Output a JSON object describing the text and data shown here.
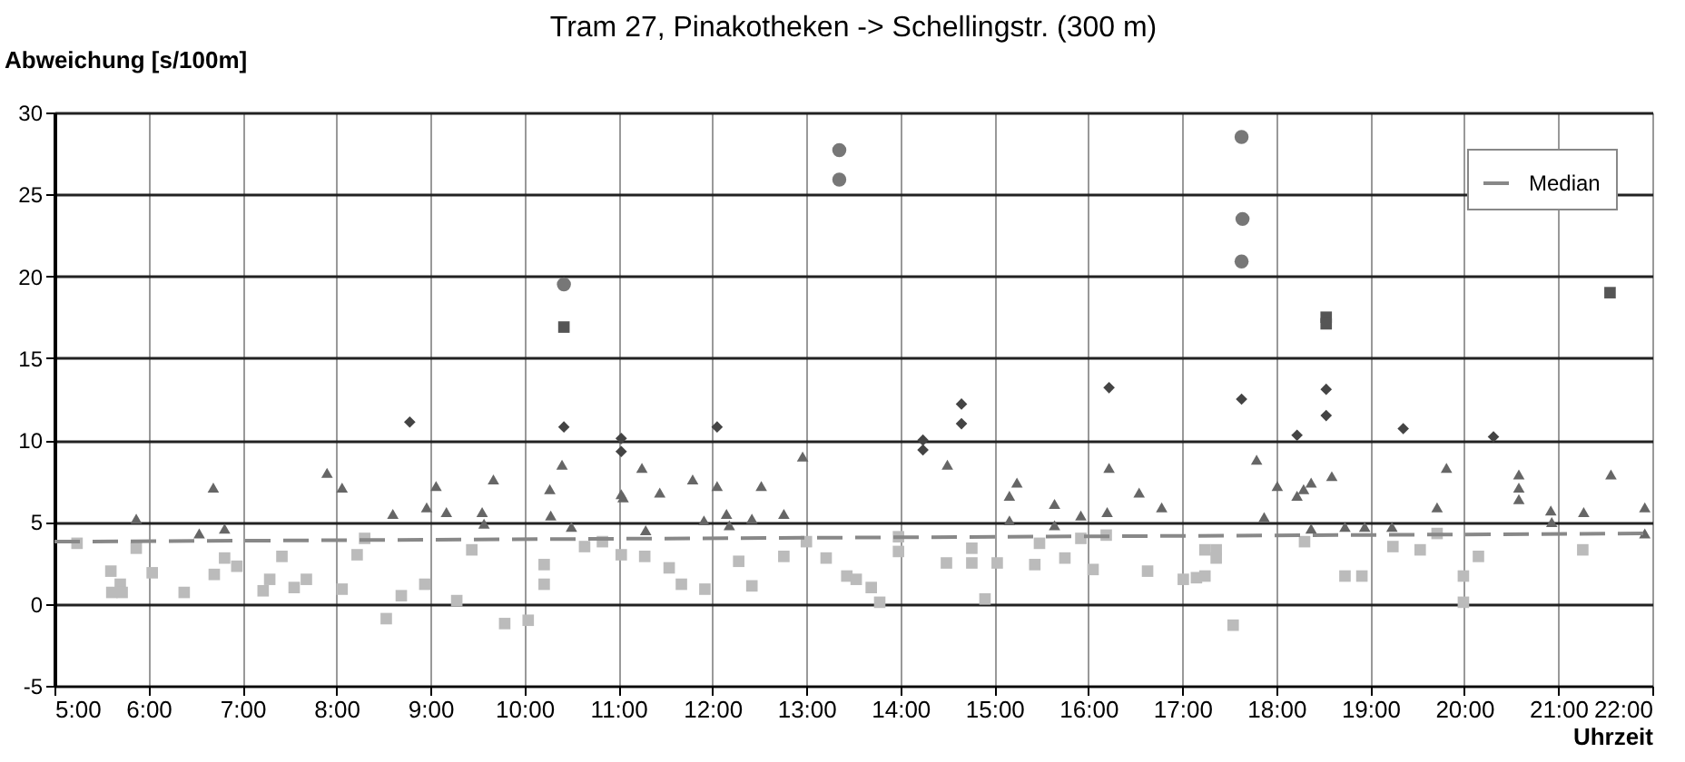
{
  "chart_data": {
    "type": "scatter",
    "title": "Tram 27, Pinakotheken -> Schellingstr. (300 m)",
    "xlabel": "Uhrzeit",
    "ylabel": "Abweichung [s/100m]",
    "xlim": [
      5,
      22
    ],
    "xticks": [
      {
        "value": 5,
        "label": "5:00"
      },
      {
        "value": 6,
        "label": "6:00"
      },
      {
        "value": 7,
        "label": "7:00"
      },
      {
        "value": 8,
        "label": "8:00"
      },
      {
        "value": 9,
        "label": "9:00"
      },
      {
        "value": 10,
        "label": "10:00"
      },
      {
        "value": 11,
        "label": "11:00"
      },
      {
        "value": 12,
        "label": "12:00"
      },
      {
        "value": 13,
        "label": "13:00"
      },
      {
        "value": 14,
        "label": "14:00"
      },
      {
        "value": 15,
        "label": "15:00"
      },
      {
        "value": 16,
        "label": "16:00"
      },
      {
        "value": 17,
        "label": "17:00"
      },
      {
        "value": 18,
        "label": "18:00"
      },
      {
        "value": 19,
        "label": "19:00"
      },
      {
        "value": 20,
        "label": "20:00"
      },
      {
        "value": 21,
        "label": "21:00"
      },
      {
        "value": 22,
        "label": "22:00"
      }
    ],
    "ylim": [
      -5,
      30
    ],
    "yticks": [
      -5,
      0,
      5,
      10,
      15,
      20,
      25,
      30
    ],
    "grid": true,
    "legend": "top right",
    "series": [
      {
        "marker": "square",
        "color": "#bbbbbb",
        "x": [
          5.24,
          5.6,
          5.61,
          5.7,
          5.72,
          5.87,
          6.04,
          6.38,
          6.7,
          6.81,
          6.94,
          7.22,
          7.29,
          7.42,
          7.55,
          7.68,
          8.06,
          8.22,
          8.3,
          8.53,
          8.69,
          8.94,
          9.28,
          9.44,
          9.79,
          10.04,
          10.21,
          10.21,
          10.64,
          10.83,
          11.03,
          11.28,
          11.54,
          11.67,
          11.92,
          12.28,
          12.42,
          12.76,
          13.0,
          13.21,
          13.43,
          13.53,
          13.69,
          13.78,
          13.98,
          13.98,
          14.49,
          14.76,
          14.76,
          14.9,
          15.03,
          15.43,
          15.48,
          15.75,
          15.92,
          16.05,
          16.19,
          16.63,
          17.01,
          17.15,
          17.24,
          17.24,
          17.36,
          17.36,
          17.54,
          18.3,
          18.73,
          18.91,
          19.24,
          19.53,
          19.71,
          19.99,
          19.99,
          20.15,
          21.26
        ],
        "values": [
          3.7,
          2.0,
          0.7,
          1.2,
          0.7,
          3.4,
          1.9,
          0.7,
          1.8,
          2.8,
          2.3,
          0.8,
          1.5,
          2.9,
          1.0,
          1.5,
          0.9,
          3.0,
          4.0,
          -0.9,
          0.5,
          1.2,
          0.2,
          3.3,
          -1.2,
          -1.0,
          2.4,
          1.2,
          3.5,
          3.8,
          3.0,
          2.9,
          2.2,
          1.2,
          0.9,
          2.6,
          1.1,
          2.9,
          3.8,
          2.8,
          1.7,
          1.5,
          1.0,
          0.1,
          4.1,
          3.2,
          2.5,
          2.5,
          3.4,
          0.3,
          2.5,
          2.4,
          3.7,
          2.8,
          4.0,
          2.1,
          4.2,
          2.0,
          1.5,
          1.6,
          1.7,
          3.3,
          3.3,
          2.8,
          -1.3,
          3.8,
          1.7,
          1.7,
          3.5,
          3.3,
          4.3,
          1.7,
          0.1,
          2.9,
          3.3
        ]
      },
      {
        "marker": "triangle",
        "color": "#666666",
        "x": [
          5.87,
          6.54,
          6.69,
          6.81,
          7.9,
          8.06,
          8.6,
          8.96,
          9.06,
          9.17,
          9.55,
          9.57,
          9.67,
          10.27,
          10.28,
          10.4,
          10.5,
          11.03,
          11.05,
          11.25,
          11.29,
          11.44,
          11.79,
          11.91,
          12.05,
          12.15,
          12.18,
          12.42,
          12.52,
          12.76,
          12.96,
          14.5,
          15.16,
          15.16,
          15.24,
          15.64,
          15.64,
          15.92,
          16.2,
          16.22,
          16.54,
          16.78,
          17.79,
          17.87,
          18.01,
          18.22,
          18.29,
          18.37,
          18.37,
          18.59,
          18.73,
          18.94,
          19.23,
          19.71,
          19.81,
          20.58,
          20.58,
          20.58,
          20.92,
          20.93,
          21.27,
          21.56,
          21.92,
          21.92
        ],
        "values": [
          5.2,
          4.3,
          7.1,
          4.6,
          8.0,
          7.1,
          5.5,
          5.9,
          7.2,
          5.6,
          5.6,
          4.9,
          7.6,
          7.0,
          5.4,
          8.5,
          4.7,
          6.7,
          6.5,
          8.3,
          4.5,
          6.8,
          7.6,
          5.1,
          7.2,
          5.5,
          4.8,
          5.2,
          7.2,
          5.5,
          9.0,
          8.5,
          6.6,
          5.1,
          7.4,
          6.1,
          4.8,
          5.4,
          5.6,
          8.3,
          6.8,
          5.9,
          8.8,
          5.3,
          7.2,
          6.6,
          7.0,
          7.4,
          4.6,
          7.8,
          4.7,
          4.7,
          4.7,
          5.9,
          8.3,
          7.9,
          7.1,
          6.4,
          5.7,
          5.0,
          5.6,
          7.9,
          5.9,
          4.3
        ]
      },
      {
        "marker": "diamond",
        "color": "#444444",
        "x": [
          8.78,
          10.42,
          11.03,
          11.03,
          12.05,
          14.24,
          14.24,
          14.65,
          14.65,
          16.22,
          17.63,
          18.22,
          18.53,
          18.53,
          19.35,
          20.31
        ],
        "values": [
          11.1,
          10.8,
          10.1,
          9.3,
          10.8,
          10.0,
          9.4,
          12.2,
          11.0,
          13.2,
          12.5,
          10.3,
          13.1,
          11.5,
          10.7,
          10.2
        ]
      },
      {
        "marker": "square",
        "color": "#555555",
        "x": [
          10.42,
          18.53,
          18.53,
          21.55
        ],
        "values": [
          16.9,
          17.5,
          17.1,
          19.0
        ]
      },
      {
        "marker": "circle",
        "color": "#777777",
        "x": [
          10.42,
          13.35,
          13.35,
          17.63,
          17.64,
          17.63
        ],
        "values": [
          19.5,
          27.7,
          25.9,
          28.5,
          23.5,
          20.9
        ]
      },
      {
        "type": "line",
        "name": "Median",
        "color": "#888888",
        "line_style": "dashed",
        "x": [
          5,
          22
        ],
        "values": [
          3.8,
          4.3
        ]
      }
    ]
  }
}
